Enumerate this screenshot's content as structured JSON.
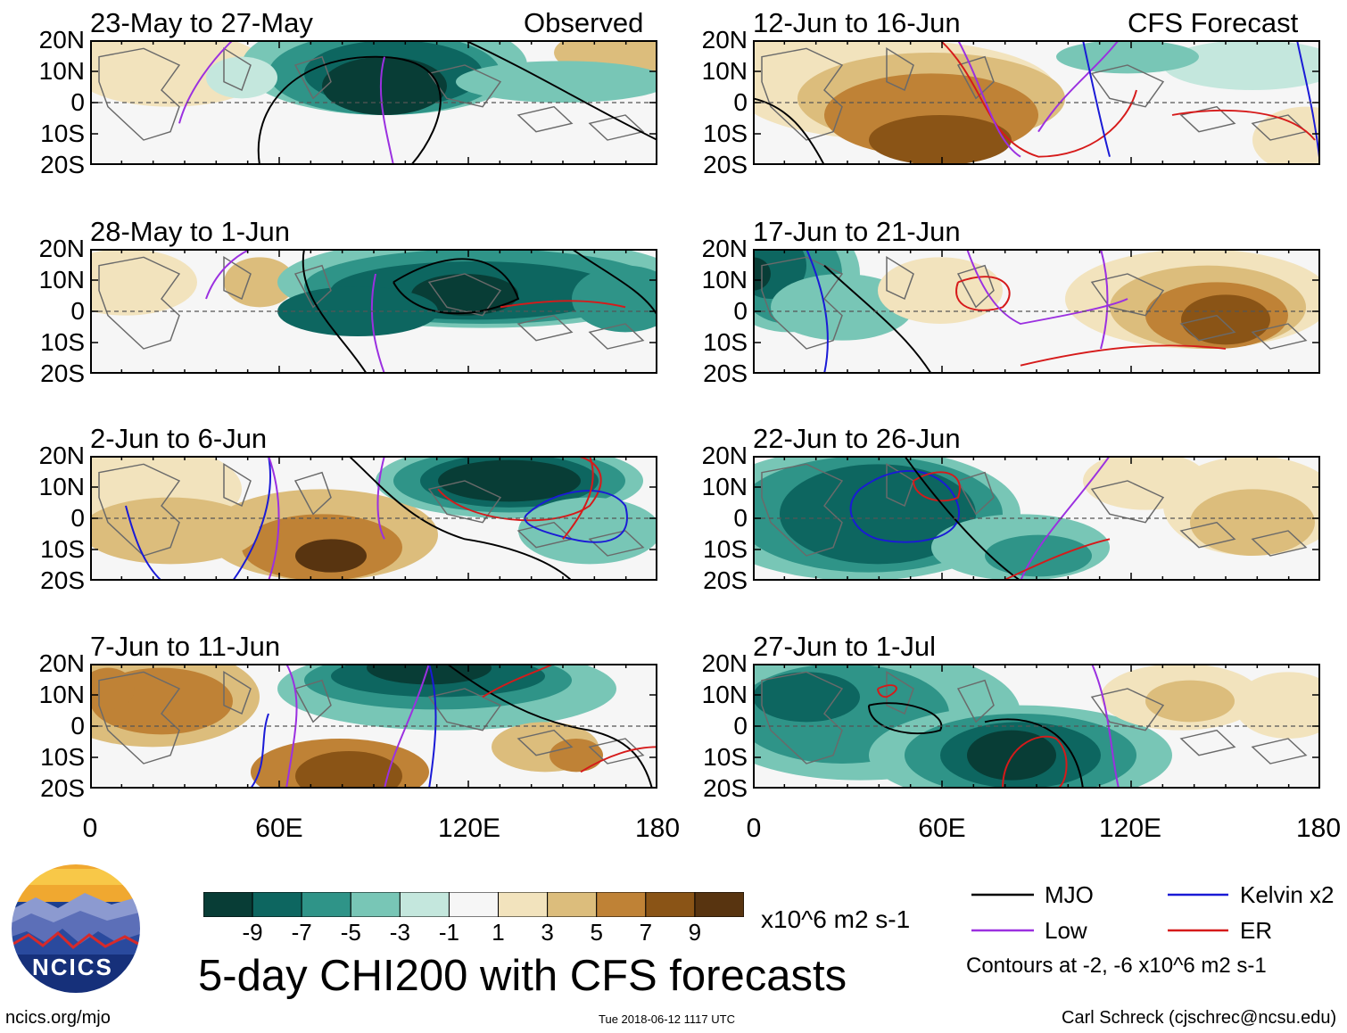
{
  "header": {
    "observed_label": "Observed",
    "forecast_label": "CFS Forecast"
  },
  "panels_left": [
    {
      "title": "23-May to 27-May"
    },
    {
      "title": "28-May to 1-Jun"
    },
    {
      "title": "2-Jun to 6-Jun"
    },
    {
      "title": "7-Jun to 11-Jun"
    }
  ],
  "panels_right": [
    {
      "title": "12-Jun to 16-Jun"
    },
    {
      "title": "17-Jun to 21-Jun"
    },
    {
      "title": "22-Jun to 26-Jun"
    },
    {
      "title": "27-Jun to 1-Jul"
    }
  ],
  "axis": {
    "y_ticks": [
      "20N",
      "10N",
      "0",
      "10S",
      "20S"
    ],
    "x_ticks": [
      "0",
      "60E",
      "120E",
      "180"
    ]
  },
  "colorbar": {
    "labels": [
      "-9",
      "-7",
      "-5",
      "-3",
      "-1",
      "1",
      "3",
      "5",
      "7",
      "9"
    ],
    "units": "x10^6 m2 s-1",
    "colors": [
      "#083d36",
      "#0d6660",
      "#2f9488",
      "#78c6b6",
      "#c4e7dd",
      "#f6f6f6",
      "#f2e3bd",
      "#dcbd7c",
      "#bf8236",
      "#8a5416",
      "#583410"
    ]
  },
  "legend": {
    "mjo": "MJO",
    "kelvin": "Kelvin x2",
    "low": "Low",
    "er": "ER",
    "contours_note": "Contours at -2, -6 x10^6 m2 s-1",
    "colors": {
      "mjo": "#000000",
      "kelvin": "#1a1ad6",
      "low": "#9b30e0",
      "er": "#d61a1a"
    }
  },
  "footer": {
    "main_title": "5-day CHI200 with CFS forecasts",
    "url": "ncics.org/mjo",
    "timestamp": "Tue 2018-06-12 1117 UTC",
    "author": "Carl Schreck (cjschrec@ncsu.edu)",
    "logo_text": "NCICS"
  },
  "chart_data": {
    "type": "heatmap",
    "title": "5-day CHI200 with CFS forecasts",
    "variable": "CHI200 anomaly",
    "units": "x10^6 m2 s-1",
    "x_range": [
      0,
      180
    ],
    "y_range": [
      -20,
      20
    ],
    "xticks": [
      "0",
      "60E",
      "120E",
      "180"
    ],
    "yticks": [
      "20N",
      "10N",
      "0",
      "10S",
      "20S"
    ],
    "color_levels": [
      -9,
      -7,
      -5,
      -3,
      -1,
      1,
      3,
      5,
      7,
      9
    ],
    "contour_levels": [
      -2,
      -6
    ],
    "series": [
      {
        "name": "MJO"
      },
      {
        "name": "Kelvin x2"
      },
      {
        "name": "Low"
      },
      {
        "name": "ER"
      }
    ],
    "panels": [
      {
        "period": "23-May to 27-May",
        "source": "Observed"
      },
      {
        "period": "28-May to 1-Jun",
        "source": "Observed"
      },
      {
        "period": "2-Jun to 6-Jun",
        "source": "Observed"
      },
      {
        "period": "7-Jun to 11-Jun",
        "source": "Observed"
      },
      {
        "period": "12-Jun to 16-Jun",
        "source": "CFS Forecast"
      },
      {
        "period": "17-Jun to 21-Jun",
        "source": "CFS Forecast"
      },
      {
        "period": "22-Jun to 26-Jun",
        "source": "CFS Forecast"
      },
      {
        "period": "27-Jun to 1-Jul",
        "source": "CFS Forecast"
      }
    ]
  }
}
